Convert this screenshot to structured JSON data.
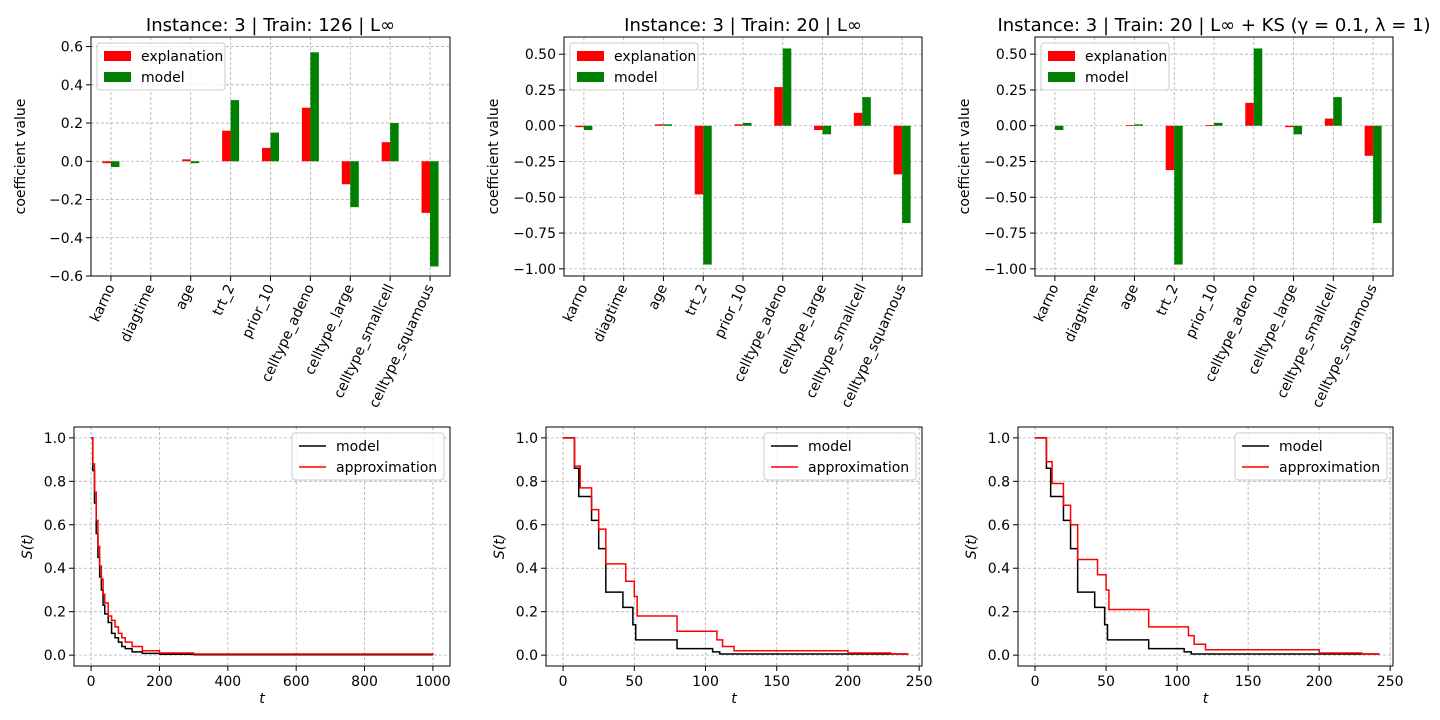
{
  "colors": {
    "explanation": "#ff0000",
    "model_bar": "#008000",
    "model_line": "#000000",
    "approximation": "#ff0000",
    "grid": "#b0b0b0"
  },
  "chart_data": [
    {
      "type": "bar",
      "title": "Instance: 3 | Train: 126 | L∞",
      "ylabel": "coefficient value",
      "ylim": [
        -0.6,
        0.65
      ],
      "yticks": [
        -0.6,
        -0.4,
        -0.2,
        0.0,
        0.2,
        0.4,
        0.6
      ],
      "ytick_labels": [
        "−0.6",
        "−0.4",
        "−0.2",
        "0.0",
        "0.2",
        "0.4",
        "0.6"
      ],
      "categories": [
        "karno",
        "diagtime",
        "age",
        "trt_2",
        "prior_10",
        "celltype_adeno",
        "celltype_large",
        "celltype_smallcell",
        "celltype_squamous"
      ],
      "series": [
        {
          "name": "explanation",
          "values": [
            -0.01,
            0.0,
            0.01,
            0.16,
            0.07,
            0.28,
            -0.12,
            0.1,
            -0.27
          ]
        },
        {
          "name": "model",
          "values": [
            -0.03,
            0.0,
            -0.01,
            0.32,
            0.15,
            0.57,
            -0.24,
            0.2,
            -0.55
          ]
        }
      ],
      "legend": [
        "explanation",
        "model"
      ]
    },
    {
      "type": "bar",
      "title": "Instance: 3 | Train: 20 | L∞",
      "ylabel": "coefficient value",
      "ylim": [
        -1.05,
        0.62
      ],
      "yticks": [
        -1.0,
        -0.75,
        -0.5,
        -0.25,
        0.0,
        0.25,
        0.5
      ],
      "ytick_labels": [
        "−1.00",
        "−0.75",
        "−0.50",
        "−0.25",
        "0.00",
        "0.25",
        "0.50"
      ],
      "categories": [
        "karno",
        "diagtime",
        "age",
        "trt_2",
        "prior_10",
        "celltype_adeno",
        "celltype_large",
        "celltype_smallcell",
        "celltype_squamous"
      ],
      "series": [
        {
          "name": "explanation",
          "values": [
            -0.01,
            0.0,
            0.01,
            -0.48,
            0.01,
            0.27,
            -0.03,
            0.09,
            -0.34
          ]
        },
        {
          "name": "model",
          "values": [
            -0.03,
            0.0,
            0.01,
            -0.97,
            0.02,
            0.54,
            -0.06,
            0.2,
            -0.68
          ]
        }
      ],
      "legend": [
        "explanation",
        "model"
      ]
    },
    {
      "type": "bar",
      "title": "Instance: 3 | Train: 20 | L∞ + KS (γ = 0.1, λ = 1)",
      "ylabel": "coefficient value",
      "ylim": [
        -1.05,
        0.62
      ],
      "yticks": [
        -1.0,
        -0.75,
        -0.5,
        -0.25,
        0.0,
        0.25,
        0.5
      ],
      "ytick_labels": [
        "−1.00",
        "−0.75",
        "−0.50",
        "−0.25",
        "0.00",
        "0.25",
        "0.50"
      ],
      "categories": [
        "karno",
        "diagtime",
        "age",
        "trt_2",
        "prior_10",
        "celltype_adeno",
        "celltype_large",
        "celltype_smallcell",
        "celltype_squamous"
      ],
      "series": [
        {
          "name": "explanation",
          "values": [
            0.0,
            0.0,
            0.005,
            -0.31,
            0.005,
            0.16,
            -0.01,
            0.05,
            -0.21
          ]
        },
        {
          "name": "model",
          "values": [
            -0.03,
            0.0,
            0.01,
            -0.97,
            0.02,
            0.54,
            -0.06,
            0.2,
            -0.68
          ]
        }
      ],
      "legend": [
        "explanation",
        "model"
      ]
    },
    {
      "type": "line",
      "step": true,
      "xlabel": "t",
      "ylabel": "S(t)",
      "xlim": [
        -50,
        1050
      ],
      "ylim": [
        -0.05,
        1.05
      ],
      "xticks": [
        0,
        200,
        400,
        600,
        800,
        1000
      ],
      "yticks": [
        0.0,
        0.2,
        0.4,
        0.6,
        0.8,
        1.0
      ],
      "ytick_labels": [
        "0.0",
        "0.2",
        "0.4",
        "0.6",
        "0.8",
        "1.0"
      ],
      "series": [
        {
          "name": "model",
          "x": [
            0,
            5,
            10,
            15,
            20,
            25,
            30,
            35,
            40,
            50,
            60,
            70,
            80,
            90,
            100,
            120,
            150,
            200,
            300,
            1000
          ],
          "y": [
            1.0,
            0.85,
            0.7,
            0.56,
            0.45,
            0.36,
            0.3,
            0.23,
            0.19,
            0.15,
            0.1,
            0.08,
            0.06,
            0.04,
            0.03,
            0.015,
            0.008,
            0.004,
            0.002,
            0.001
          ]
        },
        {
          "name": "approximation",
          "x": [
            0,
            5,
            10,
            15,
            20,
            25,
            30,
            35,
            40,
            50,
            60,
            70,
            80,
            90,
            100,
            120,
            150,
            200,
            300,
            1000
          ],
          "y": [
            1.0,
            0.88,
            0.75,
            0.62,
            0.5,
            0.41,
            0.35,
            0.28,
            0.24,
            0.18,
            0.16,
            0.13,
            0.1,
            0.08,
            0.06,
            0.04,
            0.02,
            0.01,
            0.005,
            0.002
          ]
        }
      ],
      "legend": [
        "model",
        "approximation"
      ]
    },
    {
      "type": "line",
      "step": true,
      "xlabel": "t",
      "ylabel": "S(t)",
      "xlim": [
        -12,
        252
      ],
      "ylim": [
        -0.05,
        1.05
      ],
      "xticks": [
        0,
        50,
        100,
        150,
        200,
        250
      ],
      "yticks": [
        0.0,
        0.2,
        0.4,
        0.6,
        0.8,
        1.0
      ],
      "ytick_labels": [
        "0.0",
        "0.2",
        "0.4",
        "0.6",
        "0.8",
        "1.0"
      ],
      "series": [
        {
          "name": "model",
          "x": [
            0,
            8,
            11,
            20,
            25,
            30,
            42,
            49,
            51,
            80,
            105,
            110,
            242
          ],
          "y": [
            1.0,
            0.86,
            0.73,
            0.62,
            0.49,
            0.29,
            0.22,
            0.14,
            0.07,
            0.03,
            0.015,
            0.005,
            0.002
          ]
        },
        {
          "name": "approximation",
          "x": [
            0,
            8,
            12,
            20,
            25,
            30,
            44,
            50,
            52,
            80,
            108,
            112,
            120,
            200,
            230,
            242
          ],
          "y": [
            1.0,
            0.87,
            0.77,
            0.67,
            0.58,
            0.42,
            0.34,
            0.27,
            0.18,
            0.11,
            0.07,
            0.04,
            0.02,
            0.01,
            0.005,
            0.003
          ]
        }
      ],
      "legend": [
        "model",
        "approximation"
      ]
    },
    {
      "type": "line",
      "step": true,
      "xlabel": "t",
      "ylabel": "S(t)",
      "xlim": [
        -12,
        252
      ],
      "ylim": [
        -0.05,
        1.05
      ],
      "xticks": [
        0,
        50,
        100,
        150,
        200,
        250
      ],
      "yticks": [
        0.0,
        0.2,
        0.4,
        0.6,
        0.8,
        1.0
      ],
      "ytick_labels": [
        "0.0",
        "0.2",
        "0.4",
        "0.6",
        "0.8",
        "1.0"
      ],
      "series": [
        {
          "name": "model",
          "x": [
            0,
            8,
            11,
            20,
            25,
            30,
            42,
            49,
            51,
            80,
            105,
            110,
            242
          ],
          "y": [
            1.0,
            0.86,
            0.73,
            0.62,
            0.49,
            0.29,
            0.22,
            0.14,
            0.07,
            0.03,
            0.015,
            0.005,
            0.002
          ]
        },
        {
          "name": "approximation",
          "x": [
            0,
            8,
            12,
            20,
            25,
            30,
            44,
            50,
            52,
            80,
            108,
            112,
            120,
            200,
            230,
            242
          ],
          "y": [
            1.0,
            0.89,
            0.79,
            0.69,
            0.6,
            0.44,
            0.37,
            0.3,
            0.21,
            0.13,
            0.09,
            0.05,
            0.025,
            0.01,
            0.005,
            0.003
          ]
        }
      ],
      "legend": [
        "model",
        "approximation"
      ]
    }
  ]
}
